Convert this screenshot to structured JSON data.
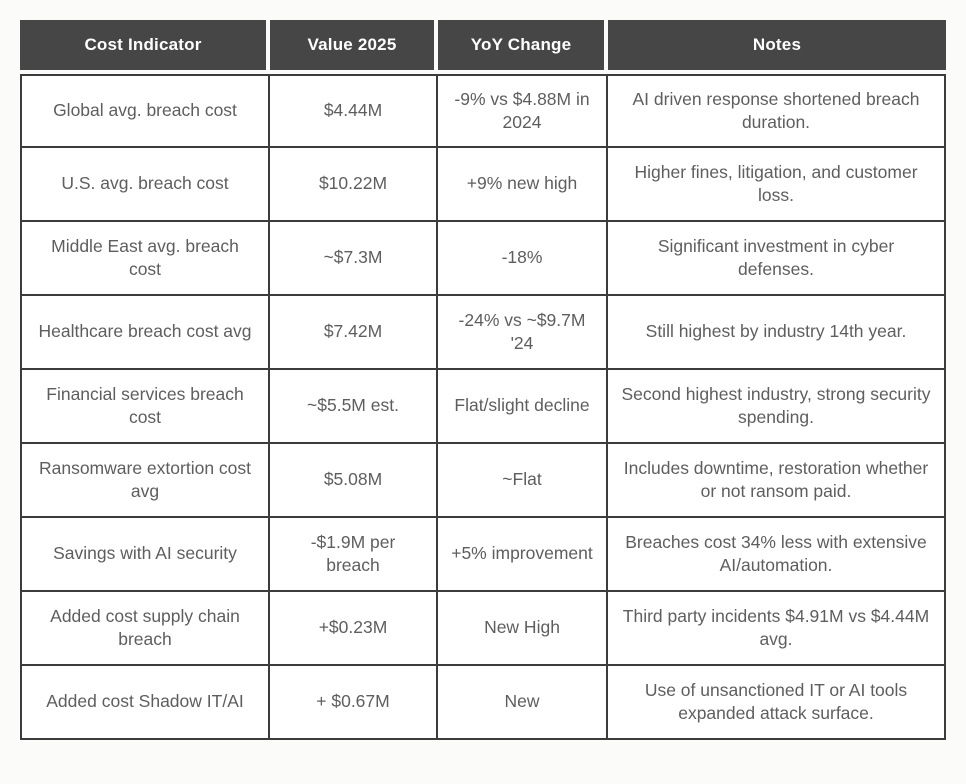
{
  "page": {
    "background_color": "#fbfbf9",
    "header_bg_color": "#464646",
    "border_color": "#3c3c3c",
    "cell_text_color": "#5e5e5e"
  },
  "table": {
    "headers": {
      "indicator": "Cost Indicator",
      "value": "Value 2025",
      "yoy": "YoY Change",
      "notes": "Notes"
    },
    "rows": [
      {
        "indicator": "Global avg. breach cost",
        "value": "$4.44M",
        "yoy": "-9% vs $4.88M in 2024",
        "notes": "AI driven response shortened breach duration."
      },
      {
        "indicator": "U.S. avg. breach cost",
        "value": "$10.22M",
        "yoy": "+9% new high",
        "notes": "Higher fines, litigation, and customer loss."
      },
      {
        "indicator": "Middle East avg. breach cost",
        "value": "~$7.3M",
        "yoy": "-18%",
        "notes": "Significant investment in cyber defenses."
      },
      {
        "indicator": "Healthcare breach cost avg",
        "value": "$7.42M",
        "yoy": "-24% vs ~$9.7M '24",
        "notes": "Still highest by industry 14th year."
      },
      {
        "indicator": "Financial services breach cost",
        "value": "~$5.5M est.",
        "yoy": "Flat/slight decline",
        "notes": "Second highest industry, strong security spending."
      },
      {
        "indicator": "Ransomware extortion cost avg",
        "value": "$5.08M",
        "yoy": "~Flat",
        "notes": "Includes downtime, restoration whether or not ransom paid."
      },
      {
        "indicator": "Savings with AI security",
        "value": "-$1.9M per breach",
        "yoy": "+5% improvement",
        "notes": "Breaches cost 34% less with extensive AI/automation."
      },
      {
        "indicator": "Added cost supply chain breach",
        "value": "+$0.23M",
        "yoy": "New High",
        "notes": "Third party incidents $4.91M vs $4.44M avg."
      },
      {
        "indicator": "Added cost Shadow IT/AI",
        "value": "+ $0.67M",
        "yoy": "New",
        "notes": "Use of unsanctioned IT or AI tools expanded attack surface."
      }
    ]
  },
  "chart_data": {
    "type": "table",
    "title": "",
    "columns": [
      "Cost Indicator",
      "Value 2025",
      "YoY Change",
      "Notes"
    ],
    "rows": [
      [
        "Global avg. breach cost",
        "$4.44M",
        "-9% vs $4.88M in 2024",
        "AI driven response shortened breach duration."
      ],
      [
        "U.S. avg. breach cost",
        "$10.22M",
        "+9% new high",
        "Higher fines, litigation, and customer loss."
      ],
      [
        "Middle East avg. breach cost",
        "~$7.3M",
        "-18%",
        "Significant investment in cyber defenses."
      ],
      [
        "Healthcare breach cost avg",
        "$7.42M",
        "-24% vs ~$9.7M '24",
        "Still highest by industry 14th year."
      ],
      [
        "Financial services breach cost",
        "~$5.5M est.",
        "Flat/slight decline",
        "Second highest industry, strong security spending."
      ],
      [
        "Ransomware extortion cost avg",
        "$5.08M",
        "~Flat",
        "Includes downtime, restoration whether or not ransom paid."
      ],
      [
        "Savings with AI security",
        "-$1.9M per breach",
        "+5% improvement",
        "Breaches cost 34% less with extensive AI/automation."
      ],
      [
        "Added cost supply chain breach",
        "+$0.23M",
        "New High",
        "Third party incidents $4.91M vs $4.44M avg."
      ],
      [
        "Added cost Shadow IT/AI",
        "+ $0.67M",
        "New",
        "Use of unsanctioned IT or AI tools expanded attack surface."
      ]
    ]
  }
}
